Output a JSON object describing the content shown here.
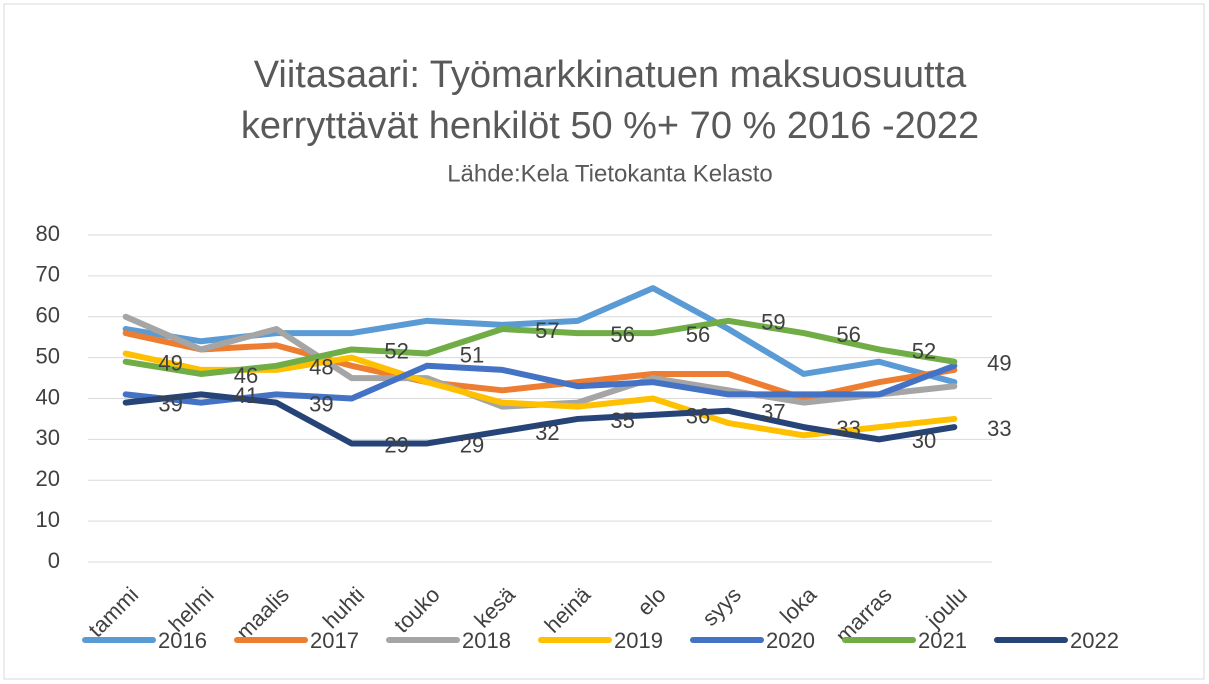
{
  "chart_data": {
    "type": "line",
    "title": [
      "Viitasaari: Työmarkkinatuen  maksuosuutta",
      "kerryttävät henkilöt 50 %+ 70 % 2016 -2022"
    ],
    "subtitle": "Lähde:Kela Tietokanta Kelasto",
    "categories": [
      "tammi",
      "helmi",
      "maalis",
      "huhti",
      "touko",
      "kesä",
      "heinä",
      "elo",
      "syys",
      "loka",
      "marras",
      "joulu"
    ],
    "series": [
      {
        "name": "2016",
        "color": "#5b9bd5",
        "values": [
          57,
          54,
          56,
          56,
          59,
          58,
          59,
          67,
          57,
          46,
          49,
          44
        ]
      },
      {
        "name": "2017",
        "color": "#ed7d31",
        "values": [
          56,
          52,
          53,
          48,
          44,
          42,
          44,
          46,
          46,
          40,
          44,
          47
        ]
      },
      {
        "name": "2018",
        "color": "#a5a5a5",
        "values": [
          60,
          52,
          57,
          45,
          45,
          38,
          39,
          45,
          42,
          39,
          41,
          43
        ]
      },
      {
        "name": "2019",
        "color": "#ffc000",
        "values": [
          51,
          47,
          47,
          50,
          44,
          39,
          38,
          40,
          34,
          31,
          33,
          35
        ]
      },
      {
        "name": "2020",
        "color": "#4472c4",
        "values": [
          41,
          39,
          41,
          40,
          48,
          47,
          43,
          44,
          41,
          41,
          41,
          48
        ]
      },
      {
        "name": "2021",
        "color": "#70ad47",
        "values": [
          49,
          46,
          48,
          52,
          51,
          57,
          56,
          56,
          59,
          56,
          52,
          49
        ],
        "data_labels": true
      },
      {
        "name": "2022",
        "color": "#264478",
        "values": [
          39,
          41,
          39,
          29,
          29,
          32,
          35,
          36,
          37,
          33,
          30,
          33
        ],
        "data_labels": true
      }
    ],
    "ylim": [
      0,
      80
    ],
    "yticks": [
      0,
      10,
      20,
      30,
      40,
      50,
      60,
      70,
      80
    ],
    "grid": true,
    "legend": "bottom"
  }
}
